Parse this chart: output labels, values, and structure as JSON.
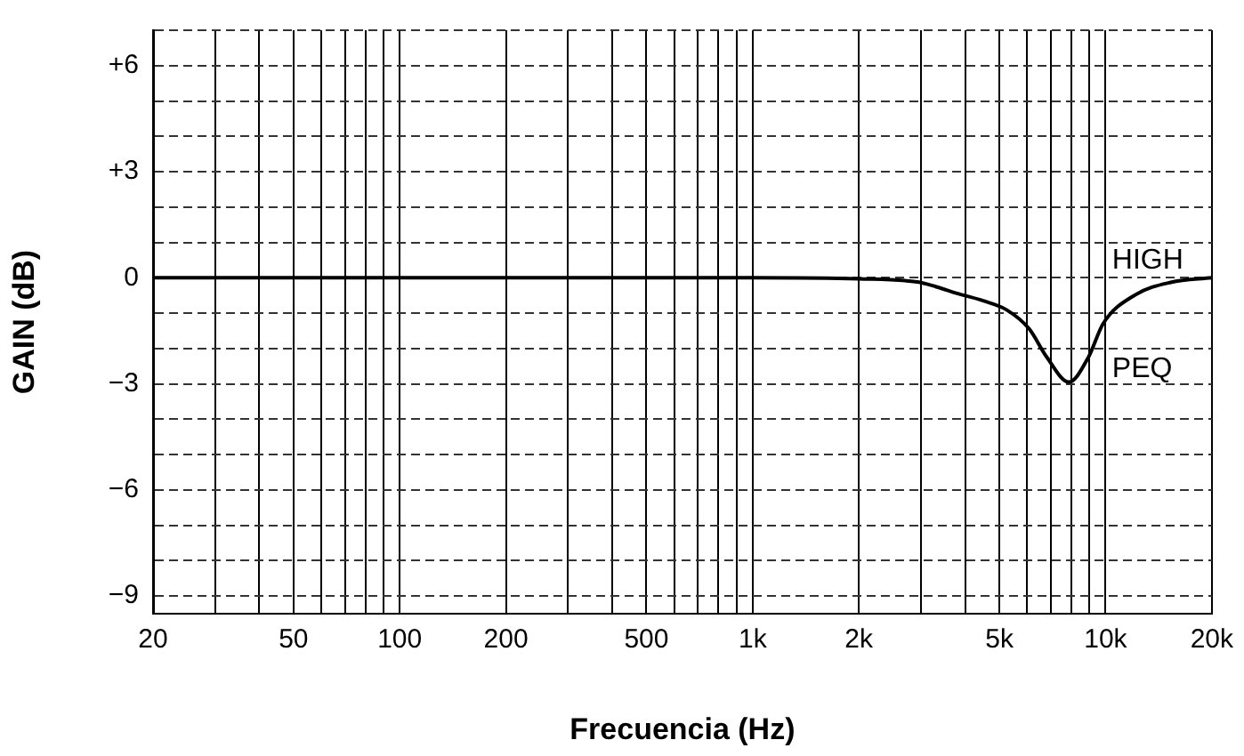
{
  "chart_data": {
    "type": "line",
    "xlabel": "Frecuencia (Hz)",
    "ylabel": "GAIN (dB)",
    "log": "x",
    "grid": true,
    "color": "#000000",
    "x": [
      20,
      100,
      1000,
      2000,
      2930,
      3300,
      3820,
      4500,
      5230,
      6070,
      6820,
      7870,
      8940,
      9840,
      12160,
      15300,
      20000
    ],
    "values": [
      0,
      0,
      0,
      -0.03,
      -0.12,
      -0.25,
      -0.45,
      -0.65,
      -0.9,
      -1.44,
      -2.25,
      -2.95,
      -2.25,
      -1.3,
      -0.48,
      -0.13,
      0
    ],
    "xlim": [
      20,
      20000
    ],
    "ylim": [
      -9.5,
      7
    ],
    "xticks": [
      20,
      {
        "value": 30,
        "label": null
      },
      {
        "value": 40,
        "label": null
      },
      50,
      {
        "value": 60,
        "label": null
      },
      {
        "value": 70,
        "label": null
      },
      {
        "value": 80,
        "label": null
      },
      {
        "value": 90,
        "label": null
      },
      100,
      200,
      {
        "value": 300,
        "label": null
      },
      {
        "value": 400,
        "label": null
      },
      500,
      {
        "value": 600,
        "label": null
      },
      {
        "value": 700,
        "label": null
      },
      {
        "value": 800,
        "label": null
      },
      {
        "value": 900,
        "label": null
      },
      {
        "value": 1000,
        "label": "1k"
      },
      {
        "value": 2000,
        "label": "2k"
      },
      {
        "value": 3000,
        "label": null
      },
      {
        "value": 4000,
        "label": null
      },
      {
        "value": 5000,
        "label": "5k"
      },
      {
        "value": 6000,
        "label": null
      },
      {
        "value": 7000,
        "label": null
      },
      {
        "value": 8000,
        "label": null
      },
      {
        "value": 9000,
        "label": null
      },
      {
        "value": 10000,
        "label": "10k"
      },
      {
        "value": 20000,
        "label": "20k"
      }
    ],
    "yticks": [
      {
        "value": -9,
        "label": "−9"
      },
      {
        "value": -8,
        "label": null
      },
      {
        "value": -7,
        "label": null
      },
      {
        "value": -6,
        "label": "−6"
      },
      {
        "value": -5,
        "label": null
      },
      {
        "value": -4,
        "label": null
      },
      {
        "value": -3,
        "label": "−3"
      },
      {
        "value": -2,
        "label": null
      },
      {
        "value": -1,
        "label": null
      },
      0,
      {
        "value": 1,
        "label": null
      },
      {
        "value": 2,
        "label": null
      },
      {
        "value": 3,
        "label": "+3"
      },
      {
        "value": 4,
        "label": null
      },
      {
        "value": 5,
        "label": null
      },
      {
        "value": 6,
        "label": "+6"
      },
      {
        "value": 7,
        "label": null
      }
    ],
    "annotations": [
      "HIGH",
      "PEQ"
    ]
  }
}
